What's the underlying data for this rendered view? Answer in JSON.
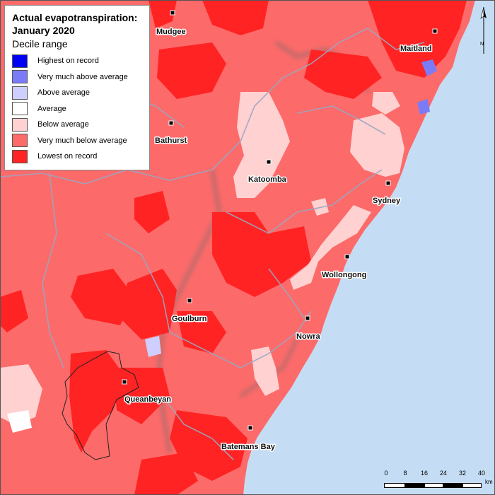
{
  "legend": {
    "title": "Actual evapotranspiration:",
    "subtitle_period": "January 2020",
    "subtitle": "Decile range",
    "items": [
      {
        "label": "Highest on record",
        "color": "#0000f5"
      },
      {
        "label": "Very much above average",
        "color": "#7b7bf7"
      },
      {
        "label": "Above average",
        "color": "#cfcfff"
      },
      {
        "label": "Average",
        "color": "#ffffff"
      },
      {
        "label": "Below average",
        "color": "#ffd1d1"
      },
      {
        "label": "Very much below average",
        "color": "#fc6a6a"
      },
      {
        "label": "Lowest on record",
        "color": "#ff2323"
      }
    ]
  },
  "towns": [
    {
      "name": "Mudgee"
    },
    {
      "name": "Maitland"
    },
    {
      "name": "Bathurst"
    },
    {
      "name": "Katoomba"
    },
    {
      "name": "Sydney"
    },
    {
      "name": "Wollongong"
    },
    {
      "name": "Goulburn"
    },
    {
      "name": "Nowra"
    },
    {
      "name": "Queanbeyan"
    },
    {
      "name": "Batemans Bay"
    }
  ],
  "scalebar": {
    "ticks": [
      "0",
      "8",
      "16",
      "24",
      "32",
      "40"
    ],
    "unit": "km"
  },
  "north_arrow": {
    "label": "N"
  },
  "colors": {
    "ocean": "#c5ddf4",
    "land_base": "#fc6a6a",
    "lowest": "#ff2323",
    "below": "#ffd1d1",
    "boundaries": "#9aa7c2"
  }
}
